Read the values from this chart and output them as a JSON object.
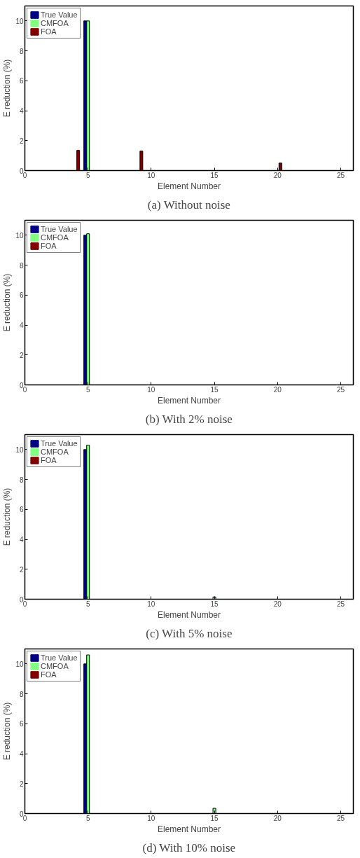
{
  "chart_data": [
    {
      "type": "bar",
      "title": "(a) Without noise",
      "xlabel": "Element Number",
      "ylabel": "E reduction (%)",
      "x": [
        1,
        2,
        3,
        4,
        5,
        6,
        7,
        8,
        9,
        10,
        11,
        12,
        13,
        14,
        15,
        16,
        17,
        18,
        19,
        20,
        21,
        22,
        23,
        24,
        25
      ],
      "series": [
        {
          "name": "True Value",
          "color": "#000080",
          "values": [
            0,
            0,
            0,
            0,
            10,
            0,
            0,
            0,
            0,
            0,
            0,
            0,
            0,
            0,
            0,
            0,
            0,
            0,
            0,
            0,
            0,
            0,
            0,
            0,
            0
          ]
        },
        {
          "name": "CMFOA",
          "color": "#80ff80",
          "values": [
            0,
            0,
            0,
            0,
            10,
            0,
            0,
            0,
            0,
            0,
            0,
            0,
            0,
            0,
            0,
            0,
            0,
            0,
            0,
            0,
            0,
            0,
            0,
            0,
            0
          ]
        },
        {
          "name": "FOA",
          "color": "#800000",
          "values": [
            0,
            0,
            0,
            1.35,
            0,
            0,
            0,
            0,
            1.3,
            0,
            0,
            0,
            0,
            0,
            0,
            0,
            0,
            0,
            0,
            0.5,
            0,
            0,
            0,
            0,
            0
          ]
        }
      ],
      "xlim": [
        0,
        26
      ],
      "ylim": [
        0,
        11
      ],
      "xticks": [
        0,
        5,
        10,
        15,
        20,
        25
      ],
      "yticks": [
        0,
        2,
        4,
        6,
        8,
        10
      ],
      "legend": "top left",
      "grid": false
    },
    {
      "type": "bar",
      "title": "(b) With 2% noise",
      "xlabel": "Element Number",
      "ylabel": "E reduction (%)",
      "x": [
        1,
        2,
        3,
        4,
        5,
        6,
        7,
        8,
        9,
        10,
        11,
        12,
        13,
        14,
        15,
        16,
        17,
        18,
        19,
        20,
        21,
        22,
        23,
        24,
        25
      ],
      "series": [
        {
          "name": "True Value",
          "color": "#000080",
          "values": [
            0,
            0,
            0,
            0,
            10,
            0,
            0,
            0,
            0,
            0,
            0,
            0,
            0,
            0,
            0,
            0,
            0,
            0,
            0,
            0,
            0,
            0,
            0,
            0,
            0
          ]
        },
        {
          "name": "CMFOA",
          "color": "#80ff80",
          "values": [
            0,
            0,
            0,
            0,
            10.1,
            0,
            0,
            0,
            0,
            0,
            0,
            0,
            0,
            0,
            0,
            0,
            0,
            0,
            0,
            0,
            0,
            0,
            0,
            0,
            0
          ]
        },
        {
          "name": "FOA",
          "color": "#800000",
          "values": [
            0,
            0,
            0,
            0,
            0,
            0,
            0,
            0,
            0,
            0,
            0,
            0,
            0,
            0,
            0,
            0,
            0,
            0,
            0,
            0,
            0,
            0,
            0,
            0,
            0
          ]
        }
      ],
      "xlim": [
        0,
        26
      ],
      "ylim": [
        0,
        11
      ],
      "xticks": [
        0,
        5,
        10,
        15,
        20,
        25
      ],
      "yticks": [
        0,
        2,
        4,
        6,
        8,
        10
      ],
      "legend": "top left",
      "grid": false
    },
    {
      "type": "bar",
      "title": "(c) With 5% noise",
      "xlabel": "Element Number",
      "ylabel": "E reduction (%)",
      "x": [
        1,
        2,
        3,
        4,
        5,
        6,
        7,
        8,
        9,
        10,
        11,
        12,
        13,
        14,
        15,
        16,
        17,
        18,
        19,
        20,
        21,
        22,
        23,
        24,
        25
      ],
      "series": [
        {
          "name": "True Value",
          "color": "#000080",
          "values": [
            0,
            0,
            0,
            0,
            10,
            0,
            0,
            0,
            0,
            0,
            0,
            0,
            0,
            0,
            0,
            0,
            0,
            0,
            0,
            0,
            0,
            0,
            0,
            0,
            0
          ]
        },
        {
          "name": "CMFOA",
          "color": "#80ff80",
          "values": [
            0,
            0,
            0,
            0,
            10.3,
            0,
            0,
            0,
            0,
            0,
            0,
            0,
            0,
            0,
            0.15,
            0,
            0,
            0,
            0,
            0,
            0,
            0,
            0,
            0,
            0
          ]
        },
        {
          "name": "FOA",
          "color": "#800000",
          "values": [
            0,
            0,
            0,
            0,
            0,
            0,
            0,
            0,
            0,
            0,
            0,
            0,
            0,
            0,
            0,
            0,
            0,
            0,
            0,
            0,
            0,
            0,
            0,
            0,
            0
          ]
        }
      ],
      "xlim": [
        0,
        26
      ],
      "ylim": [
        0,
        11
      ],
      "xticks": [
        0,
        5,
        10,
        15,
        20,
        25
      ],
      "yticks": [
        0,
        2,
        4,
        6,
        8,
        10
      ],
      "legend": "top left",
      "grid": false
    },
    {
      "type": "bar",
      "title": "(d) With 10% noise",
      "xlabel": "Element Number",
      "ylabel": "E reduction (%)",
      "x": [
        1,
        2,
        3,
        4,
        5,
        6,
        7,
        8,
        9,
        10,
        11,
        12,
        13,
        14,
        15,
        16,
        17,
        18,
        19,
        20,
        21,
        22,
        23,
        24,
        25
      ],
      "series": [
        {
          "name": "True Value",
          "color": "#000080",
          "values": [
            0,
            0,
            0,
            0,
            10,
            0,
            0,
            0,
            0,
            0,
            0,
            0,
            0,
            0,
            0,
            0,
            0,
            0,
            0,
            0,
            0,
            0,
            0,
            0,
            0
          ]
        },
        {
          "name": "CMFOA",
          "color": "#80ff80",
          "values": [
            0,
            0,
            0,
            0,
            10.6,
            0,
            0,
            0,
            0,
            0,
            0,
            0,
            0,
            0,
            0.35,
            0,
            0,
            0,
            0,
            0,
            0,
            0,
            0,
            0,
            0
          ]
        },
        {
          "name": "FOA",
          "color": "#800000",
          "values": [
            0,
            0,
            0,
            0,
            0,
            0,
            0,
            0,
            0,
            0,
            0,
            0,
            0,
            0,
            0,
            0,
            0,
            0,
            0,
            0,
            0,
            0,
            0,
            0,
            0
          ]
        }
      ],
      "xlim": [
        0,
        26
      ],
      "ylim": [
        0,
        11
      ],
      "xticks": [
        0,
        5,
        10,
        15,
        20,
        25
      ],
      "yticks": [
        0,
        2,
        4,
        6,
        8,
        10
      ],
      "legend": "top left",
      "grid": false
    }
  ]
}
